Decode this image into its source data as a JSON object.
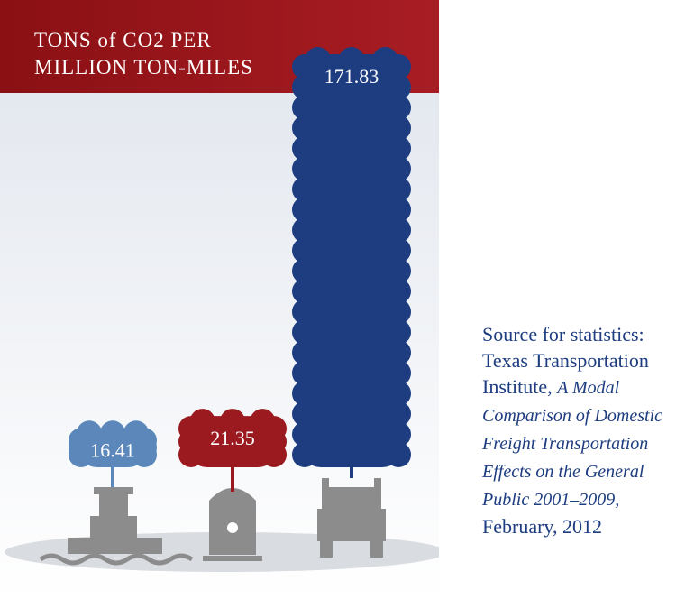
{
  "chart_data": {
    "type": "bar",
    "title": "TONS of CO2 PER MILLION TON-MILES",
    "categories": [
      null,
      null,
      null
    ],
    "values": [
      16.41,
      21.35,
      171.83
    ],
    "colors": [
      "#5b87ba",
      "#9a1a1f",
      "#1d3d80"
    ]
  },
  "source": {
    "prefix": "Source for statistics: Texas Transportation Institute,",
    "publication": "A Modal Comparison of Domestic Freight Transportation Effects on the General Public 2001–2009,",
    "date": "February, 2012"
  }
}
